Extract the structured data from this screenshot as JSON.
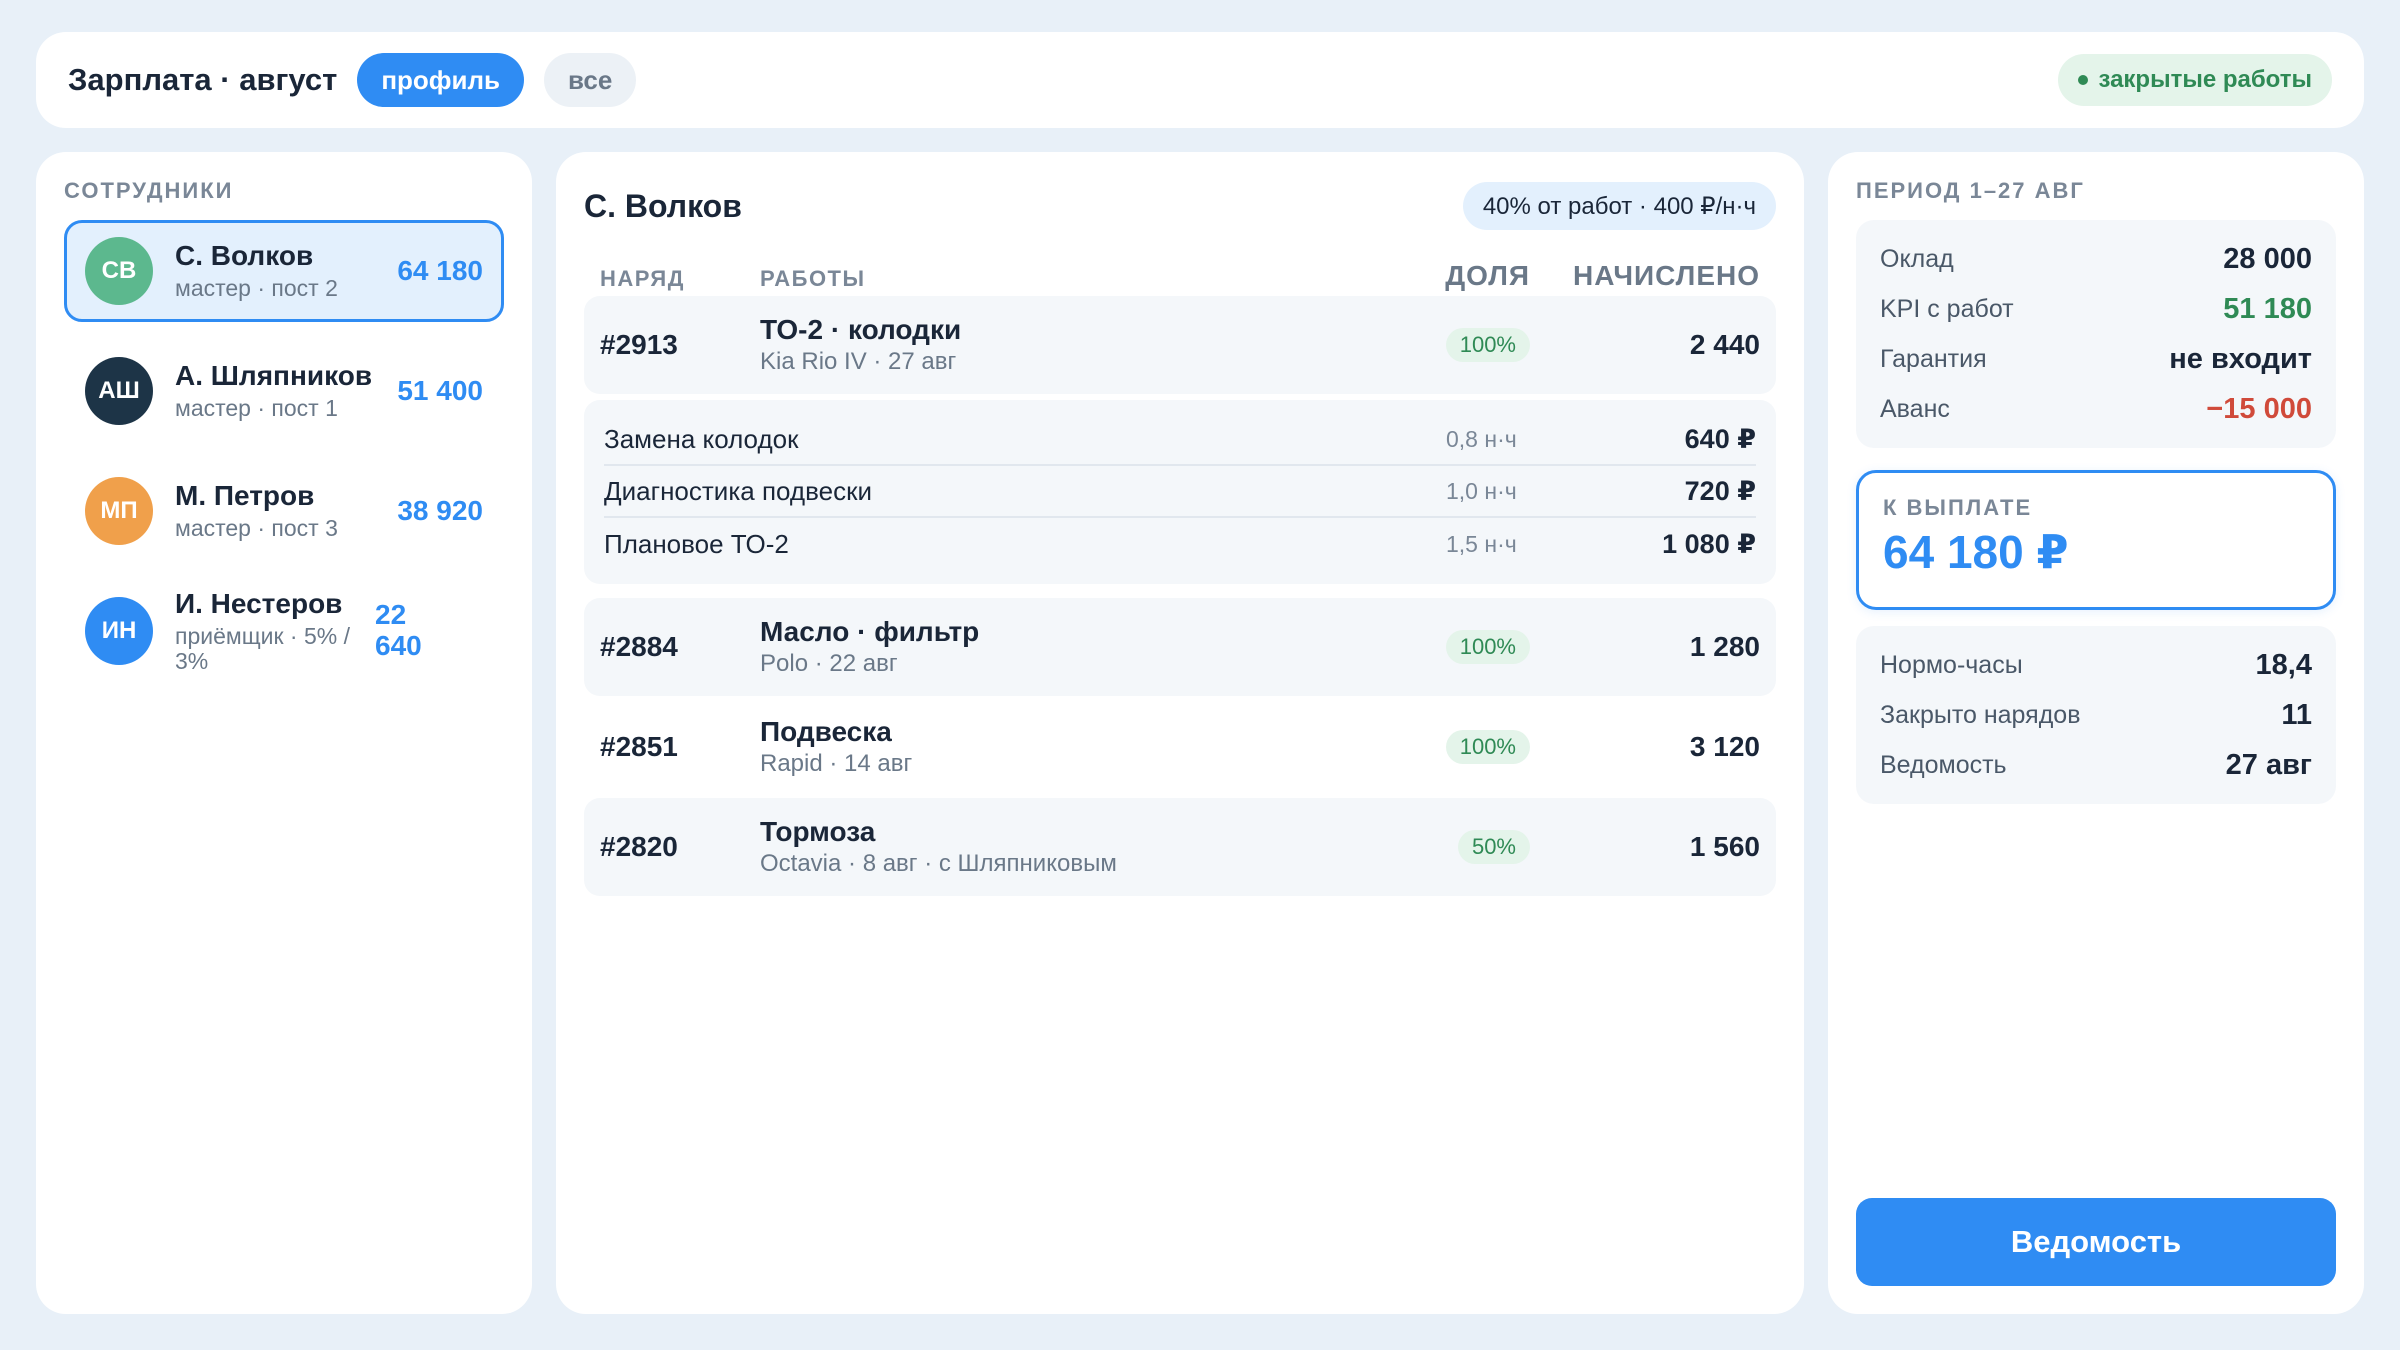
{
  "header": {
    "title": "Зарплата · август",
    "tab_profile": "профиль",
    "tab_all": "все",
    "status": "закрытые работы"
  },
  "sidebar": {
    "label": "СОТРУДНИКИ",
    "employees": [
      {
        "initials": "СВ",
        "name": "С. Волков",
        "role": "мастер · пост 2",
        "amount": "64 180",
        "color": "#5cb88e"
      },
      {
        "initials": "АШ",
        "name": "А. Шляпников",
        "role": "мастер · пост 1",
        "amount": "51 400",
        "color": "#1d3447"
      },
      {
        "initials": "МП",
        "name": "М. Петров",
        "role": "мастер · пост 3",
        "amount": "38 920",
        "color": "#f0a04b"
      },
      {
        "initials": "ИН",
        "name": "И. Нестеров",
        "role": "приёмщик · 5% / 3%",
        "amount": "22 640",
        "color": "#2f8cf3"
      }
    ]
  },
  "main": {
    "title": "С. Волков",
    "rate": "40% от работ · 400 ₽/н·ч",
    "columns": {
      "order": "НАРЯД",
      "work": "РАБОТЫ",
      "share": "ДОЛЯ",
      "accrued": "НАЧИСЛЕНО"
    },
    "orders": [
      {
        "num": "#2913",
        "title": "ТО-2 · колодки",
        "sub": "Kia Rio IV · 27 авг",
        "share": "100%",
        "accrued": "2 440"
      },
      {
        "num": "#2884",
        "title": "Масло · фильтр",
        "sub": "Polo · 22 авг",
        "share": "100%",
        "accrued": "1 280"
      },
      {
        "num": "#2851",
        "title": "Подвеска",
        "sub": "Rapid · 14 авг",
        "share": "100%",
        "accrued": "3 120"
      },
      {
        "num": "#2820",
        "title": "Тормоза",
        "sub": "Octavia · 8 авг · с Шляпниковым",
        "share": "50%",
        "accrued": "1 560"
      }
    ],
    "details": [
      {
        "name": "Замена колодок",
        "hours": "0,8 н·ч",
        "price": "640 ₽"
      },
      {
        "name": "Диагностика подвески",
        "hours": "1,0 н·ч",
        "price": "720 ₽"
      },
      {
        "name": "Плановое ТО-2",
        "hours": "1,5 н·ч",
        "price": "1 080 ₽"
      }
    ]
  },
  "right": {
    "period": "ПЕРИОД 1–27 АВГ",
    "summary": [
      {
        "label": "Оклад",
        "value": "28 000"
      },
      {
        "label": "KPI с работ",
        "value": "51 180"
      },
      {
        "label": "Гарантия",
        "value": "не входит"
      },
      {
        "label": "Аванс",
        "value": "−15 000"
      }
    ],
    "payout_label": "К ВЫПЛАТЕ",
    "payout_value": "64 180 ₽",
    "stats": [
      {
        "label": "Нормо-часы",
        "value": "18,4"
      },
      {
        "label": "Закрыто нарядов",
        "value": "11"
      },
      {
        "label": "Ведомость",
        "value": "27 авг"
      }
    ],
    "button": "Ведомость"
  },
  "colors": {
    "accent": "#2f8cf3",
    "positive": "#2f8a55",
    "negative": "#d04a3a"
  }
}
